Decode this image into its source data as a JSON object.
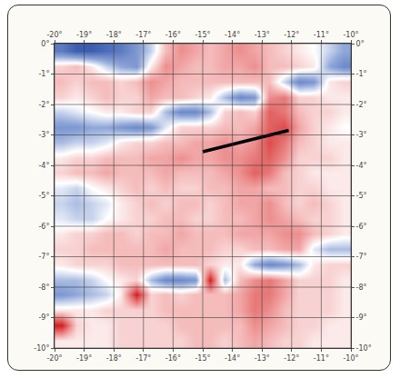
{
  "chart_data": {
    "type": "heatmap",
    "x": [
      -19.75,
      -19.25,
      -18.75,
      -18.25,
      -17.75,
      -17.25,
      -16.75,
      -16.25,
      -15.75,
      -15.25,
      -14.75,
      -14.25,
      -13.75,
      -13.25,
      -12.75,
      -12.25,
      -11.75,
      -11.25,
      -10.75,
      -10.25
    ],
    "y": [
      -0.25,
      -0.75,
      -1.25,
      -1.75,
      -2.25,
      -2.75,
      -3.25,
      -3.75,
      -4.25,
      -4.75,
      -5.25,
      -5.75,
      -6.25,
      -6.75,
      -7.25,
      -7.75,
      -8.25,
      -8.75,
      -9.25,
      -9.75
    ],
    "z": [
      [
        -0.7,
        -0.9,
        -0.9,
        -0.8,
        -0.7,
        -0.5,
        -0.2,
        0.3,
        0.5,
        0.4,
        0.3,
        0.4,
        0.5,
        0.4,
        0.3,
        0.2,
        0.1,
        0.0,
        -0.2,
        -0.4
      ],
      [
        0.2,
        0.3,
        0.1,
        -0.2,
        -0.4,
        -0.5,
        0.1,
        0.5,
        0.4,
        0.3,
        0.3,
        0.4,
        0.4,
        0.5,
        0.3,
        0.3,
        0.2,
        0.1,
        -0.4,
        -0.6
      ],
      [
        0.3,
        0.2,
        0.3,
        0.3,
        0.2,
        0.3,
        0.5,
        0.4,
        0.3,
        0.3,
        0.3,
        0.3,
        0.3,
        0.3,
        0.3,
        -0.2,
        -0.6,
        -0.5,
        0.1,
        0.2
      ],
      [
        0.2,
        0.1,
        0.2,
        0.3,
        0.2,
        0.2,
        0.4,
        0.3,
        0.3,
        0.2,
        0.1,
        -0.3,
        -0.6,
        -0.5,
        0.5,
        0.6,
        0.2,
        0.2,
        0.1,
        0.1
      ],
      [
        -0.2,
        -0.1,
        0.0,
        0.1,
        0.1,
        0.2,
        0.2,
        -0.3,
        -0.6,
        -0.6,
        -0.3,
        0.2,
        0.3,
        0.2,
        0.7,
        0.6,
        0.3,
        0.2,
        0.2,
        0.1
      ],
      [
        -0.5,
        -0.5,
        -0.4,
        -0.4,
        -0.5,
        -0.6,
        -0.5,
        -0.1,
        0.2,
        0.2,
        0.2,
        0.3,
        0.3,
        0.4,
        0.7,
        0.8,
        0.4,
        0.2,
        0.1,
        0.0
      ],
      [
        -0.3,
        -0.2,
        -0.2,
        -0.1,
        0.1,
        0.2,
        0.2,
        0.3,
        0.3,
        0.4,
        0.4,
        0.5,
        0.4,
        0.5,
        0.8,
        0.6,
        0.3,
        0.2,
        0.1,
        0.1
      ],
      [
        0.1,
        0.2,
        0.2,
        0.3,
        0.3,
        0.3,
        0.4,
        0.4,
        0.5,
        0.4,
        0.4,
        0.5,
        0.5,
        0.6,
        0.7,
        0.5,
        0.2,
        0.2,
        0.2,
        0.1
      ],
      [
        0.2,
        0.3,
        0.3,
        0.4,
        0.3,
        0.3,
        0.3,
        0.4,
        0.3,
        0.3,
        0.3,
        0.4,
        0.5,
        0.7,
        0.6,
        0.3,
        0.2,
        0.1,
        0.1,
        0.1
      ],
      [
        -0.1,
        -0.2,
        0.0,
        0.1,
        0.2,
        0.3,
        0.2,
        0.3,
        0.2,
        0.2,
        0.3,
        0.3,
        0.4,
        0.4,
        0.3,
        0.3,
        0.2,
        0.2,
        0.1,
        0.1
      ],
      [
        -0.2,
        -0.3,
        -0.2,
        -0.1,
        0.1,
        0.2,
        0.3,
        0.2,
        0.3,
        0.3,
        0.2,
        0.3,
        0.4,
        0.4,
        0.5,
        0.3,
        0.2,
        0.3,
        0.2,
        0.1
      ],
      [
        -0.1,
        -0.2,
        -0.2,
        0.0,
        0.1,
        0.2,
        0.2,
        0.3,
        0.3,
        0.2,
        0.2,
        0.3,
        0.3,
        0.4,
        0.5,
        0.4,
        0.3,
        0.2,
        0.2,
        0.1
      ],
      [
        0.1,
        0.2,
        0.2,
        0.3,
        0.3,
        0.2,
        0.3,
        0.3,
        0.4,
        0.3,
        0.3,
        0.3,
        0.4,
        0.4,
        0.4,
        0.5,
        0.5,
        0.3,
        0.2,
        0.1
      ],
      [
        0.2,
        0.2,
        0.3,
        0.3,
        0.3,
        0.3,
        0.3,
        0.4,
        0.3,
        0.3,
        0.3,
        0.2,
        0.2,
        0.3,
        0.3,
        0.4,
        0.4,
        -0.1,
        -0.3,
        -0.3
      ],
      [
        0.1,
        0.2,
        0.2,
        0.2,
        0.3,
        0.3,
        0.3,
        0.3,
        0.3,
        0.3,
        0.2,
        0.1,
        0.1,
        -0.4,
        -0.6,
        -0.5,
        -0.3,
        0.1,
        0.2,
        0.2
      ],
      [
        -0.3,
        -0.3,
        -0.2,
        0.0,
        0.1,
        0.2,
        -0.3,
        -0.6,
        -0.6,
        -0.5,
        1.0,
        -0.3,
        0.3,
        0.5,
        0.6,
        0.4,
        0.2,
        0.2,
        0.2,
        0.1
      ],
      [
        -0.5,
        -0.4,
        -0.3,
        -0.2,
        0.1,
        1.0,
        0.2,
        0.3,
        0.2,
        0.3,
        0.3,
        0.3,
        0.4,
        0.6,
        0.6,
        0.4,
        0.2,
        0.2,
        0.2,
        0.1
      ],
      [
        0.1,
        0.1,
        0.1,
        0.2,
        0.2,
        0.2,
        0.2,
        0.3,
        0.3,
        0.3,
        0.3,
        0.3,
        0.4,
        0.6,
        0.5,
        0.3,
        0.2,
        0.2,
        0.2,
        0.1
      ],
      [
        1.0,
        0.2,
        0.1,
        0.1,
        0.2,
        0.2,
        0.2,
        0.2,
        0.3,
        0.3,
        0.3,
        0.3,
        0.3,
        0.5,
        0.4,
        0.3,
        0.2,
        0.2,
        0.1,
        0.1
      ],
      [
        0.1,
        0.1,
        0.1,
        0.1,
        0.2,
        0.2,
        0.2,
        0.2,
        0.2,
        0.3,
        0.3,
        0.2,
        0.3,
        0.4,
        0.3,
        0.2,
        0.2,
        0.1,
        0.1,
        0.1
      ]
    ],
    "zlim": [
      -1,
      1
    ],
    "xlim": [
      -20,
      -10
    ],
    "ylim": [
      -10,
      0
    ],
    "xticks": [
      {
        "value": -20,
        "label": "-20°"
      },
      {
        "value": -19,
        "label": "-19°"
      },
      {
        "value": -18,
        "label": "-18°"
      },
      {
        "value": -17,
        "label": "-17°"
      },
      {
        "value": -16,
        "label": "-16°"
      },
      {
        "value": -15,
        "label": "-15°"
      },
      {
        "value": -14,
        "label": "-14°"
      },
      {
        "value": -13,
        "label": "-13°"
      },
      {
        "value": -12,
        "label": "-12°"
      },
      {
        "value": -11,
        "label": "-11°"
      },
      {
        "value": -10,
        "label": "-10°"
      }
    ],
    "yticks": [
      {
        "value": 0,
        "label": "0°"
      },
      {
        "value": -1,
        "label": "-1°"
      },
      {
        "value": -2,
        "label": "-2°"
      },
      {
        "value": -3,
        "label": "-3°"
      },
      {
        "value": -4,
        "label": "-4°"
      },
      {
        "value": -5,
        "label": "-5°"
      },
      {
        "value": -6,
        "label": "-6°"
      },
      {
        "value": -7,
        "label": "-7°"
      },
      {
        "value": -8,
        "label": "-8°"
      },
      {
        "value": -9,
        "label": "-9°"
      },
      {
        "value": -10,
        "label": "-10°"
      }
    ],
    "grid": true,
    "series": [
      {
        "type": "line",
        "x": [
          -15,
          -12.1
        ],
        "y": [
          -3.55,
          -2.85
        ],
        "color": "#000000"
      }
    ]
  }
}
